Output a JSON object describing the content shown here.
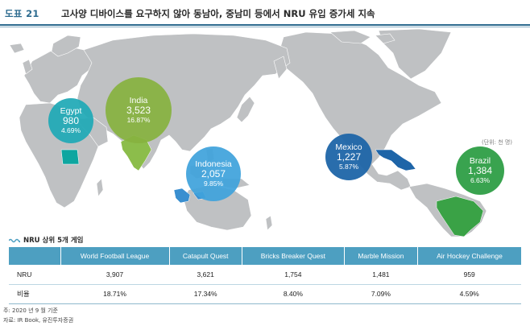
{
  "header": {
    "label": "도표 21",
    "title": "고사양 디바이스를 요구하지 않아 동남아, 중남미 등에서 NRU 유입 증가세 지속"
  },
  "map": {
    "unit": "(단위: 천 명)",
    "bubbles": [
      {
        "name": "India",
        "value": "3,523",
        "pct": "16.87%",
        "color": "#86b240"
      },
      {
        "name": "Egypt",
        "value": "980",
        "pct": "4.69%",
        "color": "#1fa9b6"
      },
      {
        "name": "Indonesia",
        "value": "2,057",
        "pct": "9.85%",
        "color": "#3fa3dc"
      },
      {
        "name": "Mexico",
        "value": "1,227",
        "pct": "5.87%",
        "color": "#1e65a8"
      },
      {
        "name": "Brazil",
        "value": "1,384",
        "pct": "6.63%",
        "color": "#2e9e46"
      }
    ],
    "colors": {
      "land": "#bfc1c3",
      "highlight_green": "#8cbd4b",
      "highlight_teal": "#0ea6a0",
      "highlight_blue": "#3a8fd0",
      "highlight_mexico": "#1e65a8",
      "highlight_brazil": "#3aa246"
    }
  },
  "table": {
    "title": "NRU 상위 5개 게임",
    "columns": [
      "",
      "World Football League",
      "Catapult Quest",
      "Bricks Breaker Quest",
      "Marble Mission",
      "Air Hockey Challenge"
    ],
    "rows": [
      {
        "label": "NRU",
        "values": [
          "3,907",
          "3,621",
          "1,754",
          "1,481",
          "959"
        ]
      },
      {
        "label": "비율",
        "values": [
          "18.71%",
          "17.34%",
          "8.40%",
          "7.09%",
          "4.59%"
        ]
      }
    ]
  },
  "notes": {
    "line1": "주: 2020 년 9 월 기준",
    "line2": "자료: IR Book, 유진투자증권"
  }
}
